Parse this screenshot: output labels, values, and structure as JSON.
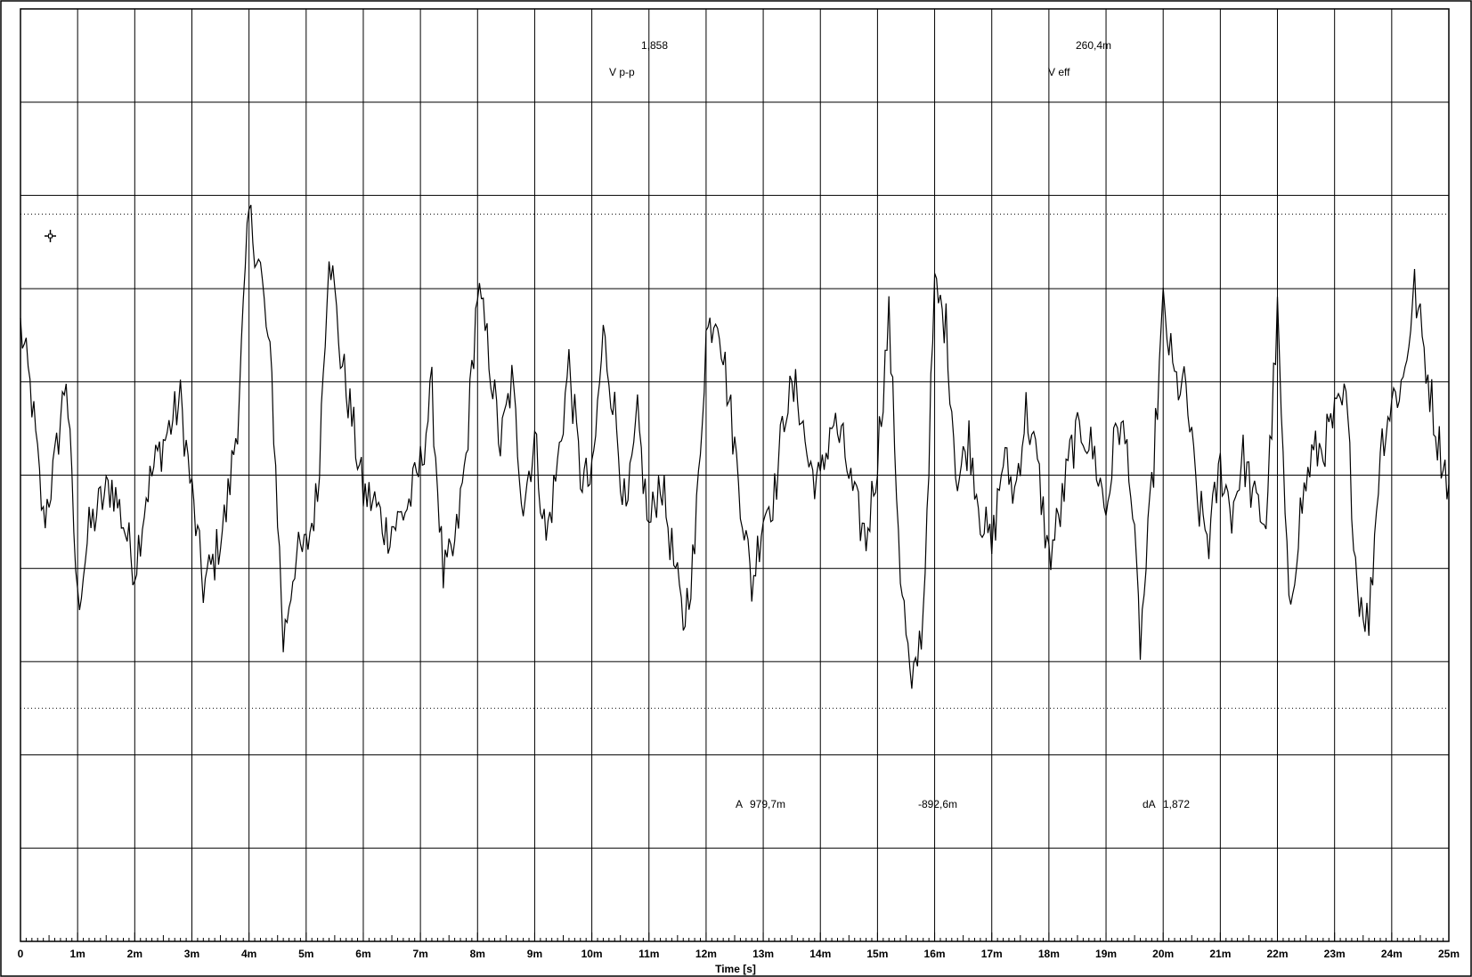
{
  "chart_data": {
    "type": "line",
    "title": "",
    "xlabel": "Time [s]",
    "ylabel": "",
    "xlim": [
      0,
      0.025
    ],
    "ylim": [
      -5,
      5
    ],
    "grid": true,
    "x_tick_labels": [
      "0",
      "1m",
      "2m",
      "3m",
      "4m",
      "5m",
      "6m",
      "7m",
      "8m",
      "9m",
      "10m",
      "11m",
      "12m",
      "13m",
      "14m",
      "15m",
      "16m",
      "17m",
      "18m",
      "19m",
      "20m",
      "21m",
      "22m",
      "23m",
      "24m",
      "25m"
    ],
    "x_tick_values": [
      0,
      0.001,
      0.002,
      0.003,
      0.004,
      0.005,
      0.006,
      0.007,
      0.008,
      0.009,
      0.01,
      0.011,
      0.012,
      0.013,
      0.014,
      0.015,
      0.016,
      0.017,
      0.018,
      0.019,
      0.02,
      0.021,
      0.022,
      0.023,
      0.024,
      0.025
    ],
    "reference_levels": [
      2.8,
      -2.5
    ],
    "cursor_marker": "crosshair-icon",
    "measurements": {
      "vpp_label": "V p-p",
      "vpp_value": "1,858",
      "veff_label": "V eff",
      "veff_value": "260,4m",
      "cursor_a_label": "A",
      "cursor_a_value": "979,7m",
      "cursor_b_value": "-892,6m",
      "delta_label": "dA",
      "delta_value": "1,872"
    },
    "series": [
      {
        "color": "#000000",
        "keypoints": [
          [
            0.0,
            1.6
          ],
          [
            0.0002,
            0.8
          ],
          [
            0.0004,
            -0.5
          ],
          [
            0.0006,
            0.1
          ],
          [
            0.0008,
            1.1
          ],
          [
            0.001,
            -1.4
          ],
          [
            0.0012,
            -0.6
          ],
          [
            0.0014,
            -0.3
          ],
          [
            0.0016,
            -0.1
          ],
          [
            0.0018,
            -0.5
          ],
          [
            0.002,
            -1.0
          ],
          [
            0.0022,
            -0.2
          ],
          [
            0.0024,
            0.2
          ],
          [
            0.0026,
            0.5
          ],
          [
            0.0028,
            0.8
          ],
          [
            0.003,
            -0.2
          ],
          [
            0.0032,
            -1.2
          ],
          [
            0.0034,
            -0.9
          ],
          [
            0.0036,
            -0.4
          ],
          [
            0.0038,
            0.6
          ],
          [
            0.004,
            2.8
          ],
          [
            0.0042,
            2.2
          ],
          [
            0.0044,
            1.0
          ],
          [
            0.0046,
            -1.8
          ],
          [
            0.0048,
            -0.9
          ],
          [
            0.005,
            -0.8
          ],
          [
            0.0052,
            -0.2
          ],
          [
            0.0054,
            2.5
          ],
          [
            0.0056,
            1.3
          ],
          [
            0.0058,
            0.6
          ],
          [
            0.006,
            -0.2
          ],
          [
            0.0062,
            -0.3
          ],
          [
            0.0064,
            -0.6
          ],
          [
            0.0066,
            -0.5
          ],
          [
            0.0068,
            -0.3
          ],
          [
            0.007,
            0.1
          ],
          [
            0.0072,
            0.9
          ],
          [
            0.0074,
            -1.1
          ],
          [
            0.0076,
            -0.8
          ],
          [
            0.0078,
            0.2
          ],
          [
            0.008,
            2.0
          ],
          [
            0.0082,
            1.3
          ],
          [
            0.0084,
            0.3
          ],
          [
            0.0086,
            1.0
          ],
          [
            0.0088,
            -0.3
          ],
          [
            0.009,
            0.4
          ],
          [
            0.0092,
            -0.7
          ],
          [
            0.0094,
            0.1
          ],
          [
            0.0096,
            1.2
          ],
          [
            0.0098,
            0.0
          ],
          [
            0.01,
            -0.1
          ],
          [
            0.0102,
            1.5
          ],
          [
            0.0104,
            0.7
          ],
          [
            0.0106,
            -0.5
          ],
          [
            0.0108,
            0.6
          ],
          [
            0.011,
            -0.6
          ],
          [
            0.0112,
            0.0
          ],
          [
            0.0114,
            -0.8
          ],
          [
            0.0116,
            -1.6
          ],
          [
            0.0118,
            -0.8
          ],
          [
            0.012,
            1.5
          ],
          [
            0.0122,
            1.8
          ],
          [
            0.0124,
            0.8
          ],
          [
            0.0126,
            -0.2
          ],
          [
            0.0128,
            -1.2
          ],
          [
            0.013,
            -0.4
          ],
          [
            0.0132,
            -0.2
          ],
          [
            0.0134,
            0.8
          ],
          [
            0.0136,
            0.9
          ],
          [
            0.0138,
            0.1
          ],
          [
            0.014,
            -0.1
          ],
          [
            0.0142,
            0.6
          ],
          [
            0.0144,
            0.3
          ],
          [
            0.0146,
            -0.3
          ],
          [
            0.0148,
            -0.7
          ],
          [
            0.015,
            0.2
          ],
          [
            0.0152,
            1.7
          ],
          [
            0.0154,
            -1.0
          ],
          [
            0.0156,
            -2.4
          ],
          [
            0.0158,
            -1.5
          ],
          [
            0.016,
            2.0
          ],
          [
            0.0162,
            1.6
          ],
          [
            0.0164,
            -0.1
          ],
          [
            0.0166,
            0.4
          ],
          [
            0.0168,
            -0.4
          ],
          [
            0.017,
            -0.8
          ],
          [
            0.0172,
            0.2
          ],
          [
            0.0174,
            -0.2
          ],
          [
            0.0176,
            0.7
          ],
          [
            0.0178,
            0.1
          ],
          [
            0.018,
            -0.9
          ],
          [
            0.0182,
            -0.4
          ],
          [
            0.0184,
            0.3
          ],
          [
            0.0186,
            0.5
          ],
          [
            0.0188,
            0.2
          ],
          [
            0.019,
            -0.4
          ],
          [
            0.0192,
            0.6
          ],
          [
            0.0194,
            0.2
          ],
          [
            0.0196,
            -1.8
          ],
          [
            0.0198,
            -0.2
          ],
          [
            0.02,
            1.8
          ],
          [
            0.0202,
            1.0
          ],
          [
            0.0204,
            0.9
          ],
          [
            0.0206,
            -0.3
          ],
          [
            0.0208,
            -0.7
          ],
          [
            0.021,
            0.1
          ],
          [
            0.0212,
            -0.4
          ],
          [
            0.0214,
            0.2
          ],
          [
            0.0216,
            -0.3
          ],
          [
            0.0218,
            -0.5
          ],
          [
            0.022,
            1.7
          ],
          [
            0.0222,
            -1.5
          ],
          [
            0.0224,
            -0.4
          ],
          [
            0.0226,
            0.2
          ],
          [
            0.0228,
            0.3
          ],
          [
            0.023,
            0.6
          ],
          [
            0.0232,
            0.8
          ],
          [
            0.0234,
            -1.2
          ],
          [
            0.0236,
            -1.6
          ],
          [
            0.0238,
            0.3
          ],
          [
            0.024,
            0.8
          ],
          [
            0.0242,
            1.0
          ],
          [
            0.0244,
            2.0
          ],
          [
            0.0246,
            1.2
          ],
          [
            0.0248,
            0.4
          ],
          [
            0.025,
            -0.1
          ]
        ]
      }
    ]
  }
}
